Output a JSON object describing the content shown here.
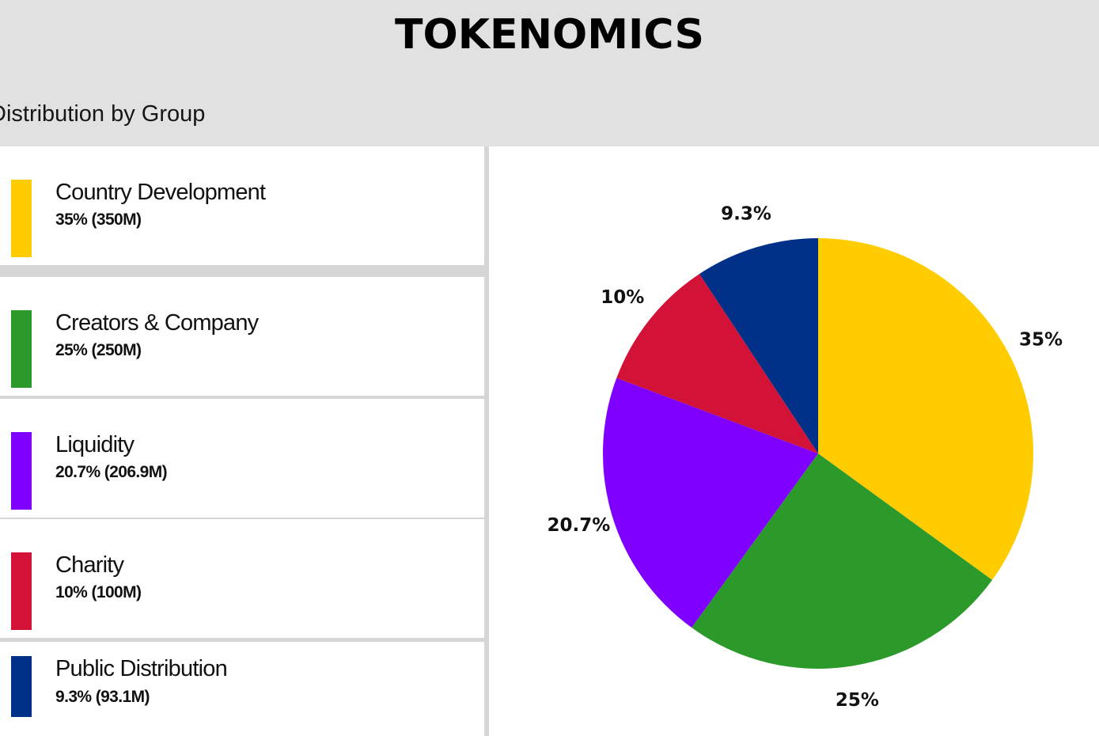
{
  "header": {
    "title": "TOKENOMICS",
    "subtitle": "Distribution by Group"
  },
  "legend": {
    "items": [
      {
        "label": "Country Development",
        "value": "35% (350M)",
        "color": "#FFCC00"
      },
      {
        "label": "Creators & Company",
        "value": "25% (250M)",
        "color": "#2C9A2A"
      },
      {
        "label": "Liquidity",
        "value": "20.7% (206.9M)",
        "color": "#7F00FF"
      },
      {
        "label": "Charity",
        "value": "10% (100M)",
        "color": "#D21236"
      },
      {
        "label": "Public Distribution",
        "value": "9.3% (93.1M)",
        "color": "#003087"
      }
    ]
  },
  "chart_data": {
    "type": "pie",
    "categories": [
      "Country Development",
      "Creators & Company",
      "Liquidity",
      "Charity",
      "Public Distribution"
    ],
    "values": [
      35,
      25,
      20.7,
      10,
      9.3
    ],
    "labels": [
      "35%",
      "25%",
      "20.7%",
      "10%",
      "9.3%"
    ],
    "colors": [
      "#FFCC00",
      "#2C9A2A",
      "#7F00FF",
      "#D21236",
      "#003087"
    ],
    "title": "TOKENOMICS",
    "subtitle": "Distribution by Group",
    "start_angle": "12 o'clock",
    "direction": "clockwise",
    "legend": "left"
  }
}
